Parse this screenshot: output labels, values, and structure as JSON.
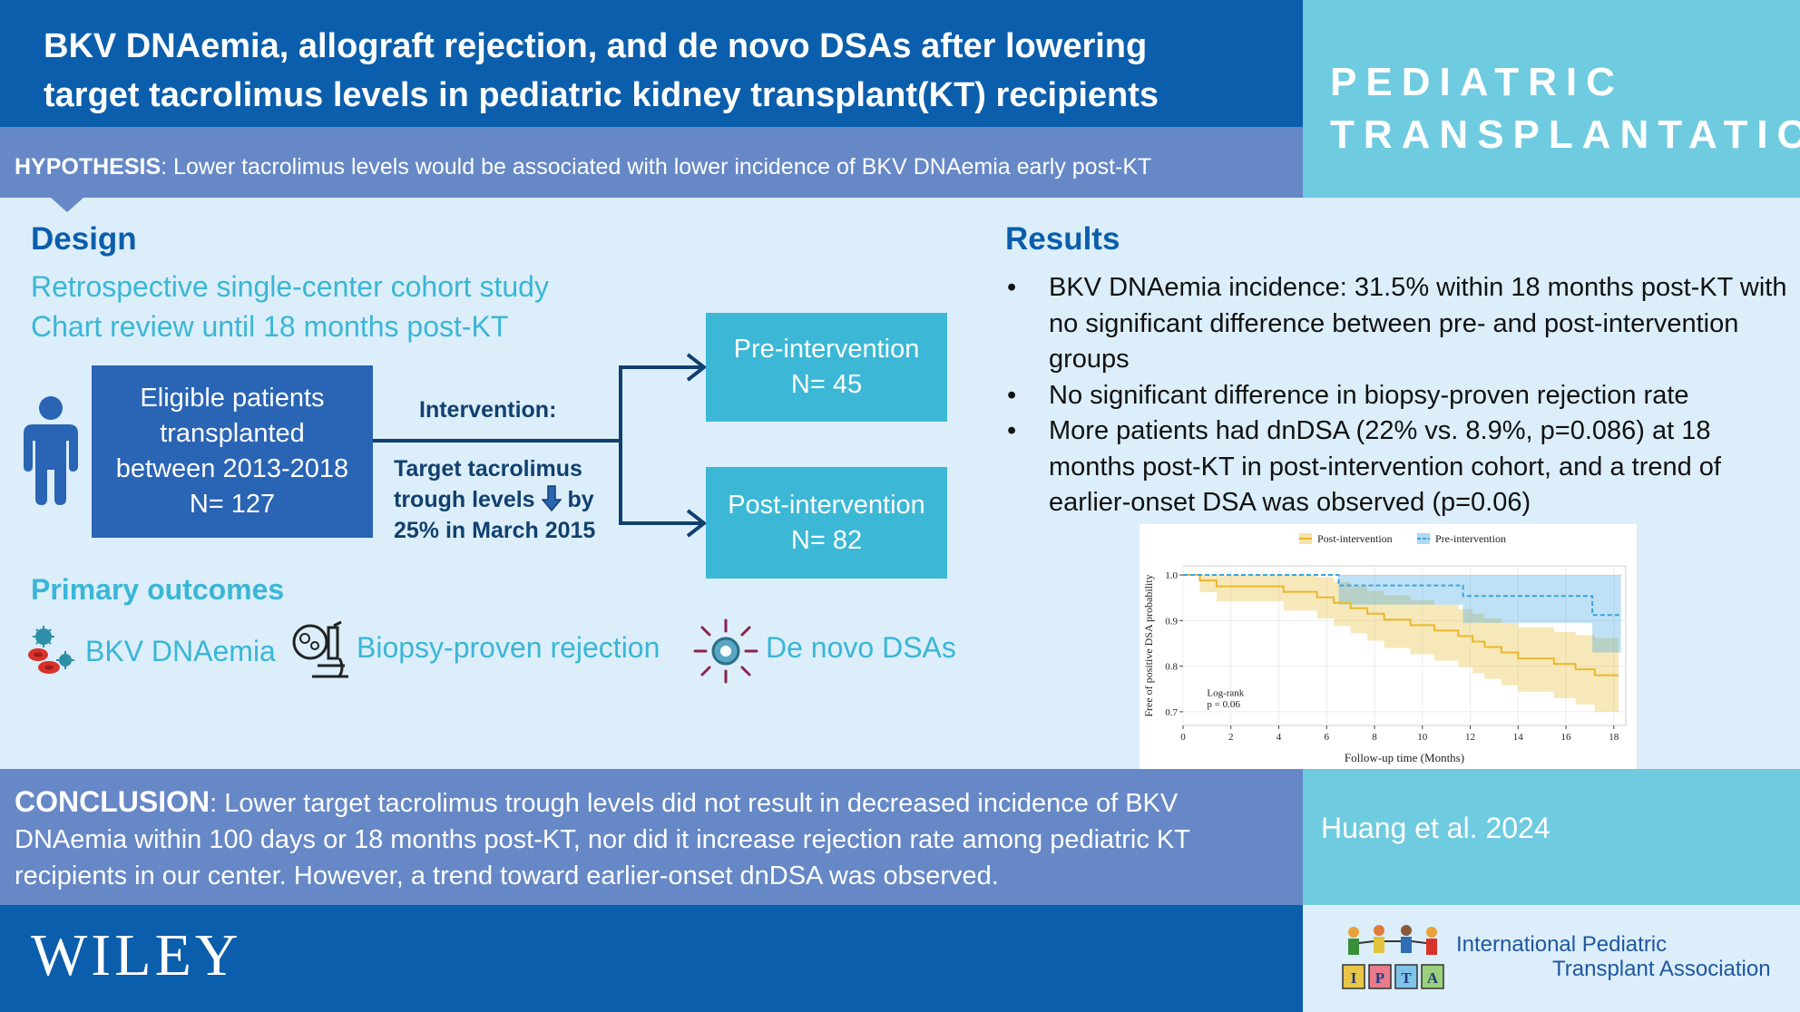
{
  "title_line1": "BKV DNAemia, allograft rejection, and de novo DSAs after lowering",
  "title_line2": "target tacrolimus levels in pediatric kidney transplant(KT) recipients",
  "brand_line1": "PEDIATRIC",
  "brand_line2": "TRANSPLANTATION",
  "hypothesis": {
    "label": "HYPOTHESIS",
    "text": ": Lower tacrolimus levels would be associated with lower incidence of BKV DNAemia early post-KT"
  },
  "design": {
    "heading": "Design",
    "line1": "Retrospective single-center cohort study",
    "line2": "Chart review until 18 months post-KT",
    "eligible": [
      "Eligible patients",
      "transplanted",
      "between 2013-2018",
      "N= 127"
    ],
    "intervention_label": "Intervention:",
    "intervention_line1": "Target tacrolimus",
    "intervention_line2a": "trough levels",
    "intervention_line2b": "by",
    "intervention_line3": "25% in March 2015",
    "pre": {
      "label": "Pre-intervention",
      "n": "N= 45"
    },
    "post": {
      "label": "Post-intervention",
      "n": "N= 82"
    }
  },
  "outcomes": {
    "heading": "Primary outcomes",
    "items": [
      "BKV DNAemia",
      "Biopsy-proven rejection",
      "De novo DSAs"
    ]
  },
  "results": {
    "heading": "Results",
    "items": [
      "BKV DNAemia incidence: 31.5% within 18 months post-KT with no significant difference between pre- and post-intervention groups",
      "No significant difference in biopsy-proven rejection rate",
      "More patients had dnDSA (22% vs. 8.9%, p=0.086) at 18 months post-KT in post-intervention cohort, and a trend of earlier-onset DSA was observed (p=0.06)"
    ]
  },
  "chart_data": {
    "type": "line",
    "title": "",
    "xlabel": "Follow-up time (Months)",
    "ylabel": "Free of positive DSA probability",
    "xlim": [
      0,
      18.5
    ],
    "ylim": [
      0.67,
      1.02
    ],
    "xticks": [
      "0",
      "2",
      "4",
      "6",
      "8",
      "10",
      "12",
      "14",
      "16",
      "18"
    ],
    "yticks": [
      "0.7",
      "0.8",
      "0.9",
      "1.0"
    ],
    "legend_position": "top",
    "annotation_line1": "Log-rank",
    "annotation_line2": "p = 0.06",
    "series": [
      {
        "name": "Post-intervention",
        "color": "#e8b92c",
        "x": [
          0,
          0.7,
          1.4,
          4.2,
          5.6,
          6.3,
          7.0,
          7.7,
          8.4,
          9.5,
          10.5,
          11.5,
          12.1,
          12.6,
          13.3,
          14.0,
          15.5,
          16.4,
          17.2,
          18.2
        ],
        "y": [
          1.0,
          0.988,
          0.975,
          0.963,
          0.951,
          0.939,
          0.927,
          0.915,
          0.902,
          0.89,
          0.878,
          0.866,
          0.854,
          0.842,
          0.83,
          0.817,
          0.805,
          0.793,
          0.78,
          0.78
        ],
        "ci_low": [
          1.0,
          0.962,
          0.942,
          0.922,
          0.905,
          0.888,
          0.872,
          0.856,
          0.84,
          0.826,
          0.812,
          0.798,
          0.784,
          0.772,
          0.758,
          0.744,
          0.73,
          0.716,
          0.7,
          0.7
        ],
        "ci_high": [
          1.0,
          1.0,
          1.0,
          1.0,
          0.995,
          0.985,
          0.975,
          0.965,
          0.955,
          0.945,
          0.935,
          0.925,
          0.915,
          0.905,
          0.895,
          0.885,
          0.875,
          0.868,
          0.862,
          0.862
        ]
      },
      {
        "name": "Pre-intervention",
        "color": "#3aa3e0",
        "x": [
          0,
          6.5,
          11.7,
          17.1,
          18.3
        ],
        "y": [
          1.0,
          0.977,
          0.954,
          0.912,
          0.912
        ],
        "ci_low": [
          1.0,
          0.935,
          0.895,
          0.83,
          0.83
        ],
        "ci_high": [
          1.0,
          1.0,
          1.0,
          1.0,
          1.0
        ]
      }
    ]
  },
  "conclusion": {
    "label": "CONCLUSION",
    "text": ": Lower target tacrolimus trough levels did not result in decreased incidence of BKV DNAemia within 100 days or 18 months post-KT, nor did it increase rejection rate among pediatric KT recipients in our center. However, a trend toward earlier-onset dnDSA was observed."
  },
  "citation": "Huang et al. 2024",
  "publisher": "WILEY",
  "ipta_line1": "International Pediatric",
  "ipta_line2": "Transplant Association",
  "ipta_letters": [
    "I",
    "P",
    "T",
    "A"
  ],
  "colors": {
    "primary": "#0b5eab",
    "accent": "#6fcbe0",
    "band": "#6688c6",
    "teal": "#3ab6d6",
    "background": "#dbeefa"
  }
}
